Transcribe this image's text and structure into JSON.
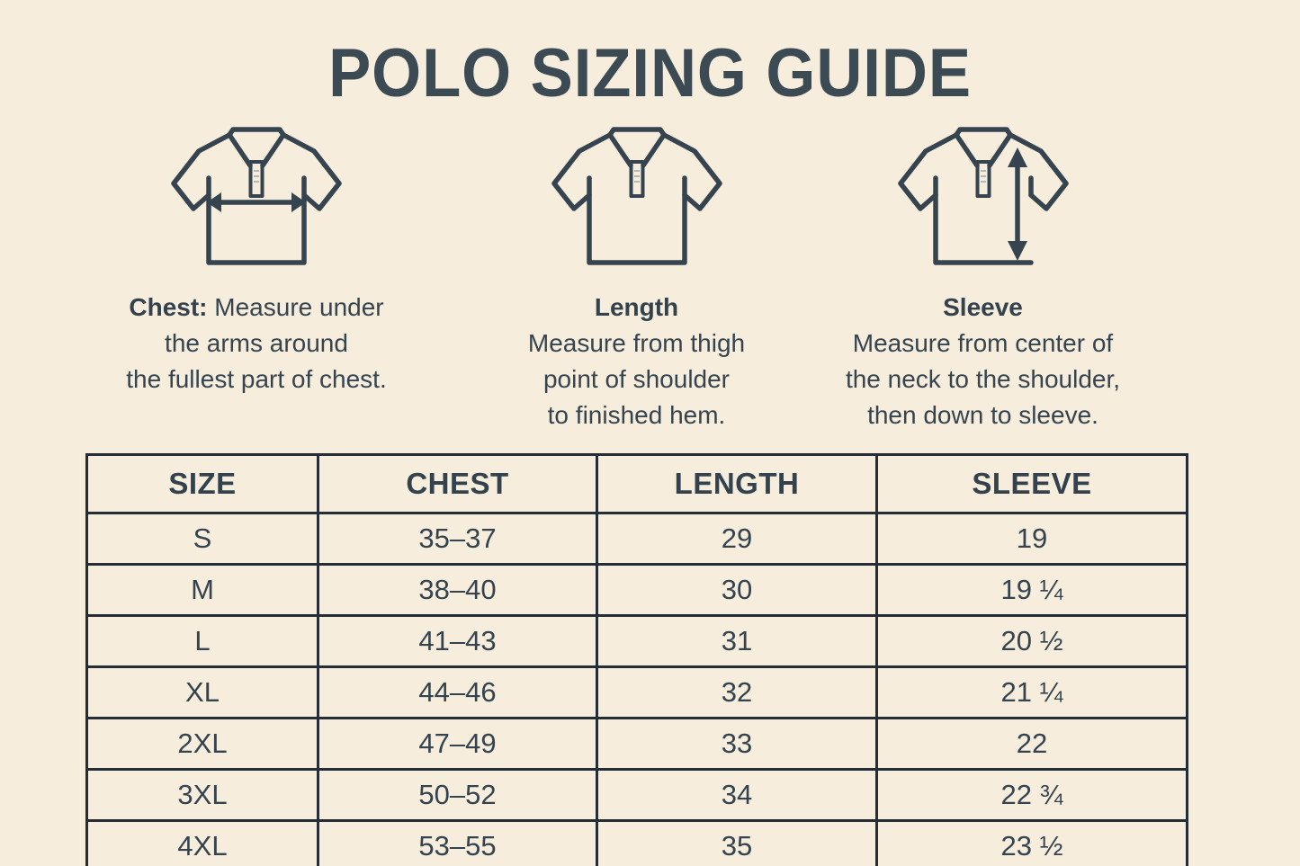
{
  "header": {
    "title": "POLO SIZING GUIDE"
  },
  "colors": {
    "background": "#f6eddd",
    "ink": "#37464f",
    "icon_stroke": "#36444f",
    "table_border": "#252e36"
  },
  "measurements": [
    {
      "name": "Chest",
      "heading": "Chest:",
      "description": " Measure under\nthe arms around\nthe fullest part of chest.",
      "icon": "polo-chest-icon"
    },
    {
      "name": "Length",
      "heading": "Length",
      "description": "Measure from thigh\npoint of shoulder\nto finished hem.",
      "icon": "polo-length-icon"
    },
    {
      "name": "Sleeve",
      "heading": "Sleeve",
      "description": "Measure from center of\nthe neck to the shoulder,\nthen down to sleeve.",
      "icon": "polo-sleeve-icon"
    }
  ],
  "table": {
    "headers": [
      "SIZE",
      "CHEST",
      "LENGTH",
      "SLEEVE"
    ],
    "rows": [
      [
        "S",
        "35–37",
        "29",
        "19"
      ],
      [
        "M",
        "38–40",
        "30",
        "19 ¼"
      ],
      [
        "L",
        "41–43",
        "31",
        "20 ½"
      ],
      [
        "XL",
        "44–46",
        "32",
        "21 ¼"
      ],
      [
        "2XL",
        "47–49",
        "33",
        "22"
      ],
      [
        "3XL",
        "50–52",
        "34",
        "22 ¾"
      ],
      [
        "4XL",
        "53–55",
        "35",
        "23 ½"
      ]
    ]
  }
}
